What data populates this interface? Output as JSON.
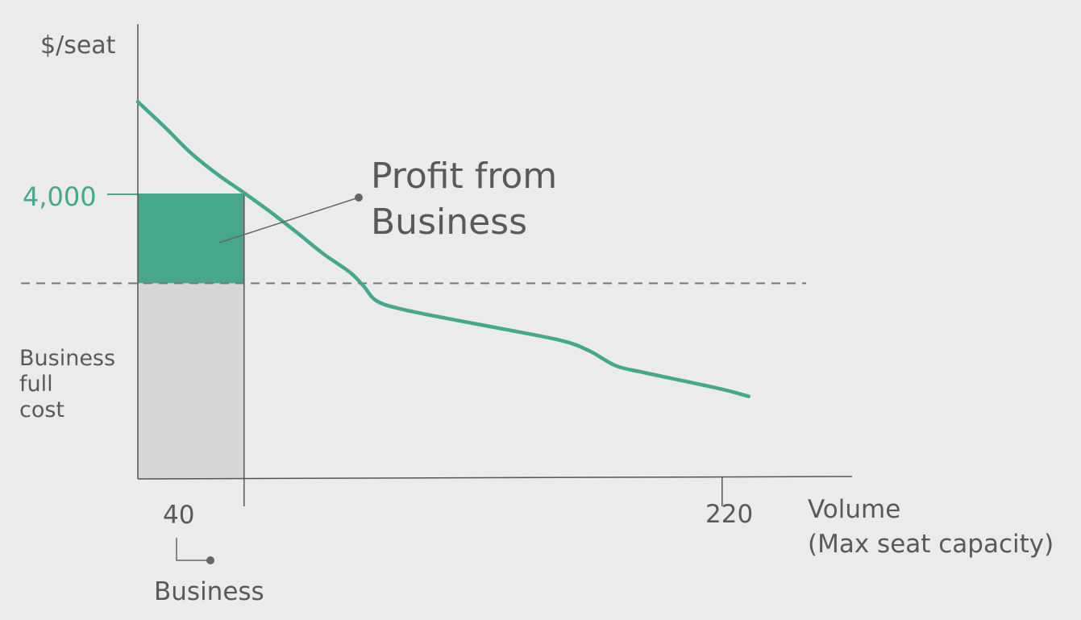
{
  "chart_data": {
    "type": "line",
    "ylabel": "$/seat",
    "xlabel_line1": "Volume",
    "xlabel_line2": "(Max seat capacity)",
    "price_level_label": "4,000",
    "x_ticks": [
      {
        "value": 40,
        "label": "40"
      },
      {
        "value": 220,
        "label": "220"
      }
    ],
    "segment_label": "Business",
    "cost_label_lines": [
      "Business",
      "full",
      "cost"
    ],
    "profit_label_lines": [
      "Profit from",
      "Business"
    ],
    "demand_curve": [
      {
        "x": 0,
        "y": 5300
      },
      {
        "x": 10,
        "y": 4950
      },
      {
        "x": 20,
        "y": 4580
      },
      {
        "x": 30,
        "y": 4280
      },
      {
        "x": 40,
        "y": 4020
      },
      {
        "x": 50,
        "y": 3750
      },
      {
        "x": 60,
        "y": 3460
      },
      {
        "x": 70,
        "y": 3160
      },
      {
        "x": 80,
        "y": 2900
      },
      {
        "x": 85,
        "y": 2710
      },
      {
        "x": 90,
        "y": 2500
      },
      {
        "x": 100,
        "y": 2380
      },
      {
        "x": 120,
        "y": 2230
      },
      {
        "x": 140,
        "y": 2090
      },
      {
        "x": 160,
        "y": 1940
      },
      {
        "x": 170,
        "y": 1800
      },
      {
        "x": 180,
        "y": 1590
      },
      {
        "x": 190,
        "y": 1500
      },
      {
        "x": 200,
        "y": 1420
      },
      {
        "x": 220,
        "y": 1260
      },
      {
        "x": 230,
        "y": 1160
      }
    ],
    "segment_volume": 40,
    "price": 4000,
    "full_cost": 2750,
    "colors": {
      "accent": "#44a88c",
      "profit_fill": "#47a78c",
      "cost_fill": "#d6d6d6",
      "axis": "#555555",
      "text": "#595959"
    }
  }
}
